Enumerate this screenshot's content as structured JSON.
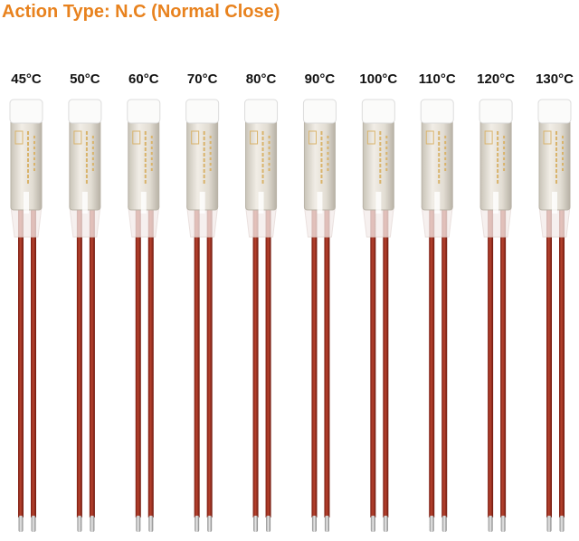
{
  "title": "Action Type: N.C (Normal Close)",
  "labels": [
    "45°C",
    "50°C",
    "60°C",
    "70°C",
    "80°C",
    "90°C",
    "100°C",
    "110°C",
    "120°C",
    "130°C"
  ]
}
